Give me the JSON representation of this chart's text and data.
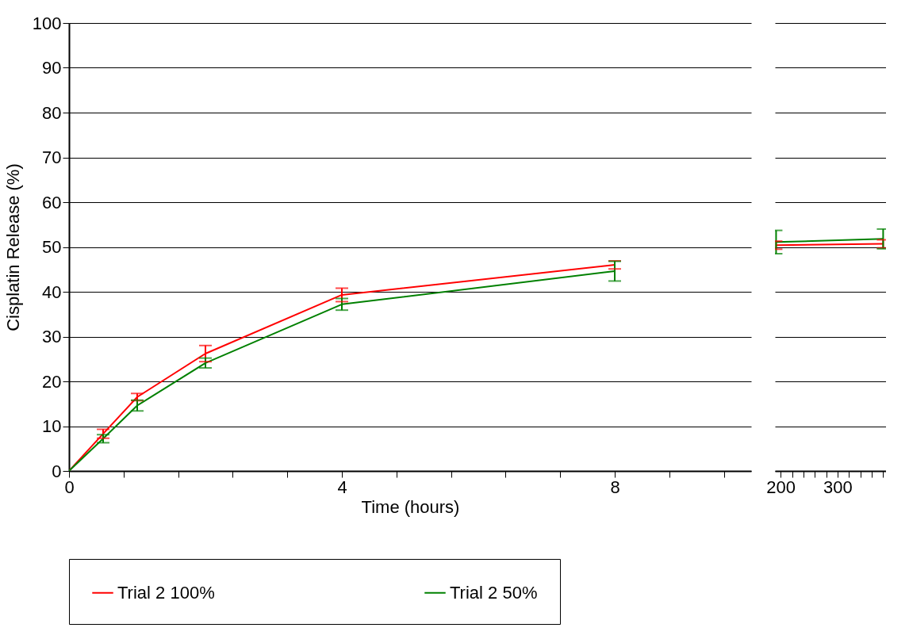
{
  "chart_data": [
    {
      "type": "line",
      "xlabel": "Time (hours)",
      "ylabel": "Cisplatin Release (%)",
      "x": [
        0,
        0.5,
        1,
        2,
        4,
        8
      ],
      "series": [
        {
          "name": "Trial 2 100%",
          "color": "#ff0000",
          "values": [
            0,
            8.3,
            16.5,
            26.2,
            39.3,
            46.0
          ],
          "errors": [
            null,
            1,
            0.8,
            1.8,
            1.5,
            0.9
          ]
        },
        {
          "name": "Trial 2 50%",
          "color": "#008000",
          "values": [
            0,
            7.2,
            14.6,
            24.1,
            37.2,
            44.6
          ],
          "errors": [
            null,
            0.9,
            1.2,
            1.1,
            1.3,
            2.2
          ]
        }
      ],
      "xlim": [
        0,
        10
      ],
      "xticks": [
        0,
        {
          "value": 0.8,
          "label": null
        },
        {
          "value": 1.6,
          "label": null
        },
        {
          "value": 2.4,
          "label": null
        },
        {
          "value": 3.2,
          "label": null
        },
        4,
        {
          "value": 4.8,
          "label": null
        },
        {
          "value": 5.6,
          "label": null
        },
        {
          "value": 6.4,
          "label": null
        },
        {
          "value": 7.2,
          "label": null
        },
        8,
        {
          "value": 8.8,
          "label": null
        },
        {
          "value": 9.6,
          "label": null
        }
      ],
      "ylim": [
        0,
        100
      ],
      "yticks": [
        0,
        10,
        20,
        30,
        40,
        50,
        60,
        70,
        80,
        90,
        100
      ],
      "grid": "y",
      "legend": "bottom",
      "line_style": "solid"
    },
    {
      "type": "line",
      "x": [
        192,
        380
      ],
      "series": [
        {
          "color": "#ff0000",
          "values": [
            50.4,
            50.7
          ],
          "errors": [
            0.9,
            0.9
          ]
        },
        {
          "color": "#008000",
          "values": [
            51.1,
            51.8
          ],
          "errors": [
            2.6,
            2.2
          ]
        }
      ],
      "xlim": [
        190,
        385
      ],
      "xticks": [
        200,
        {
          "value": 220,
          "label": null
        },
        {
          "value": 240,
          "label": null
        },
        {
          "value": 260,
          "label": null
        },
        {
          "value": 280,
          "label": null
        },
        300,
        {
          "value": 320,
          "label": null
        },
        {
          "value": 340,
          "label": null
        },
        {
          "value": 360,
          "label": null
        },
        {
          "value": 380,
          "label": null
        }
      ],
      "ylim": [
        0,
        100
      ],
      "yticks": [
        0,
        10,
        20,
        30,
        40,
        50,
        60,
        70,
        80,
        90,
        100
      ],
      "grid": "y",
      "tick_labels": "x",
      "line_style": "solid"
    }
  ]
}
